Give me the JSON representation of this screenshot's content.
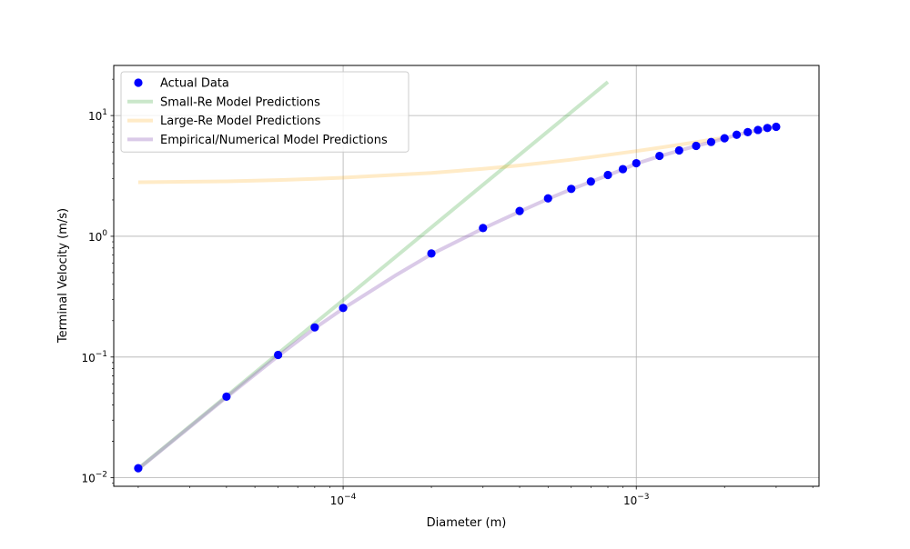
{
  "chart_data": {
    "type": "scatter",
    "title": "",
    "xlabel": "Diameter (m)",
    "ylabel": "Terminal Velocity (m/s)",
    "xscale": "log",
    "yscale": "log",
    "xlim": [
      1.65e-05,
      0.0042
    ],
    "ylim": [
      0.0085,
      26
    ],
    "grid": true,
    "legend_position": "top-left",
    "x_ticks": [
      {
        "value": 0.0001,
        "base": "10",
        "exp": "−4"
      },
      {
        "value": 0.001,
        "base": "10",
        "exp": "−3"
      }
    ],
    "y_ticks": [
      {
        "value": 0.01,
        "base": "10",
        "exp": "−2"
      },
      {
        "value": 0.1,
        "base": "10",
        "exp": "−1"
      },
      {
        "value": 1,
        "base": "10",
        "exp": "0"
      },
      {
        "value": 10,
        "base": "10",
        "exp": "1"
      }
    ],
    "series": [
      {
        "name": "Actual Data",
        "kind": "scatter",
        "color": "#0000ff",
        "x": [
          2e-05,
          4e-05,
          6e-05,
          8e-05,
          0.0001,
          0.0002,
          0.0003,
          0.0004,
          0.0005,
          0.0006,
          0.0007,
          0.0008,
          0.0009,
          0.001,
          0.0012,
          0.0014,
          0.0016,
          0.0018,
          0.002,
          0.0022,
          0.0024,
          0.0026,
          0.0028,
          0.003
        ],
        "y": [
          0.012,
          0.047,
          0.104,
          0.176,
          0.255,
          0.72,
          1.17,
          1.62,
          2.06,
          2.47,
          2.84,
          3.22,
          3.6,
          4.03,
          4.63,
          5.14,
          5.61,
          6.04,
          6.48,
          6.93,
          7.29,
          7.6,
          7.89,
          8.07
        ]
      },
      {
        "name": "Small-Re Model Predictions",
        "kind": "line",
        "color": "#2ca02c",
        "opacity": 0.25,
        "x": [
          2e-05,
          4e-05,
          6e-05,
          8e-05,
          0.0001,
          0.0002,
          0.0003,
          0.0004,
          0.0005,
          0.0006,
          0.0007,
          0.0008
        ],
        "y": [
          0.0119,
          0.0474,
          0.107,
          0.19,
          0.296,
          1.185,
          2.67,
          4.74,
          7.41,
          10.67,
          14.52,
          18.97
        ]
      },
      {
        "name": "Large-Re Model Predictions",
        "kind": "line",
        "color": "#ffa500",
        "opacity": 0.22,
        "x": [
          2e-05,
          4e-05,
          6e-05,
          8e-05,
          0.0001,
          0.0002,
          0.0003,
          0.0004,
          0.0005,
          0.0006,
          0.0007,
          0.0008,
          0.001,
          0.0012,
          0.0014,
          0.0016,
          0.0018,
          0.002
        ],
        "y": [
          2.8,
          2.85,
          2.92,
          2.99,
          3.06,
          3.35,
          3.62,
          3.86,
          4.1,
          4.31,
          4.52,
          4.72,
          5.08,
          5.42,
          5.73,
          6.02,
          6.3,
          6.56
        ]
      },
      {
        "name": "Empirical/Numerical Model Predictions",
        "kind": "line",
        "color": "#9467bd",
        "opacity": 0.35,
        "x": [
          2e-05,
          4e-05,
          6e-05,
          8e-05,
          0.0001,
          0.00015,
          0.0002,
          0.0003,
          0.0004,
          0.0005,
          0.0006,
          0.0007,
          0.0008,
          0.0009,
          0.001,
          0.0012,
          0.0014,
          0.0016,
          0.0018,
          0.002,
          0.0022,
          0.0024,
          0.0026,
          0.0028,
          0.003
        ],
        "y": [
          0.0118,
          0.0465,
          0.102,
          0.173,
          0.252,
          0.47,
          0.71,
          1.16,
          1.6,
          2.04,
          2.45,
          2.83,
          3.2,
          3.58,
          4.0,
          4.6,
          5.12,
          5.6,
          6.02,
          6.46,
          6.9,
          7.26,
          7.58,
          7.86,
          8.05
        ]
      }
    ]
  }
}
